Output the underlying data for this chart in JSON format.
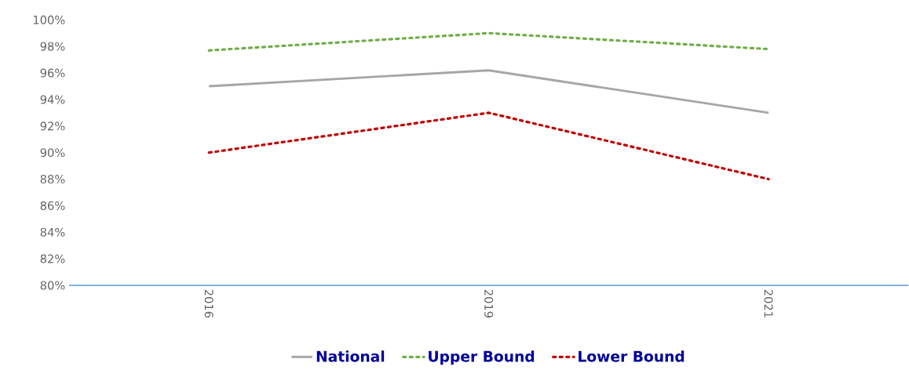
{
  "chart_data": {
    "type": "line",
    "categories": [
      "2016",
      "2019",
      "2021"
    ],
    "series": [
      {
        "name": "National",
        "color": "#a6a6a6",
        "line_style": "solid",
        "values": [
          95.0,
          96.2,
          93.0
        ]
      },
      {
        "name": "Upper Bound",
        "color": "#70ad47",
        "line_style": "dotted",
        "values": [
          97.7,
          99.0,
          97.8
        ]
      },
      {
        "name": "Lower Bound",
        "color": "#c00000",
        "line_style": "dotted",
        "values": [
          90.0,
          93.0,
          88.0
        ]
      }
    ],
    "ylim": [
      80,
      100
    ],
    "yticks": [
      {
        "value": 80,
        "label": "80%"
      },
      {
        "value": 82,
        "label": "82%"
      },
      {
        "value": 84,
        "label": "84%"
      },
      {
        "value": 86,
        "label": "86%"
      },
      {
        "value": 88,
        "label": "88%"
      },
      {
        "value": 90,
        "label": "90%"
      },
      {
        "value": 92,
        "label": "92%"
      },
      {
        "value": 94,
        "label": "94%"
      },
      {
        "value": 96,
        "label": "96%"
      },
      {
        "value": 98,
        "label": "98%"
      },
      {
        "value": 100,
        "label": "100%"
      }
    ],
    "grid": false,
    "legend": "bottom",
    "marker": "none"
  }
}
